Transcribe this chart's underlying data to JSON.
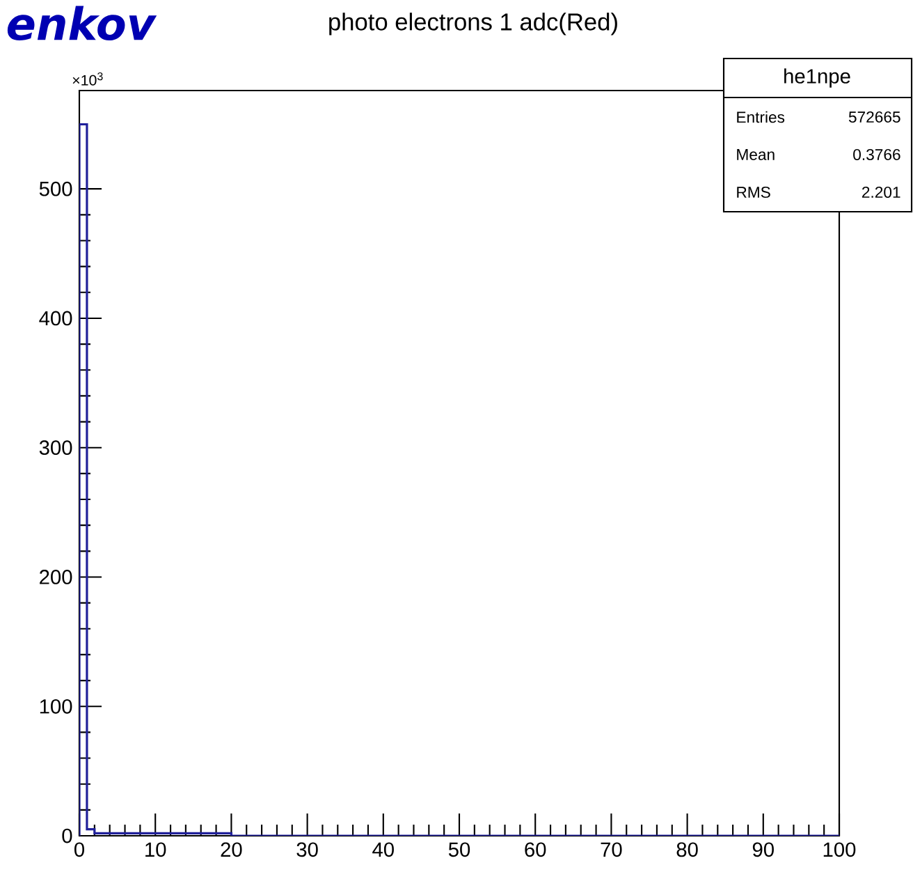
{
  "chart_data": {
    "type": "histogram",
    "title": "photo electrons 1 adc(Red)",
    "bins": [
      0,
      1,
      2,
      20,
      100
    ],
    "values": [
      550,
      5,
      2,
      0
    ],
    "color": "#20209a",
    "xlim": [
      0,
      100
    ],
    "ylim": [
      0,
      576
    ],
    "xticks": [
      0,
      10,
      20,
      30,
      40,
      50,
      60,
      70,
      80,
      90,
      100
    ],
    "yticks": [
      0,
      100,
      200,
      300,
      400,
      500
    ],
    "grid": false,
    "annotations": [
      "×10$^{3}$",
      "enkov",
      "he1npe",
      "Entries",
      "572665",
      "Mean",
      "0.3766",
      "RMS",
      "2.201"
    ]
  }
}
